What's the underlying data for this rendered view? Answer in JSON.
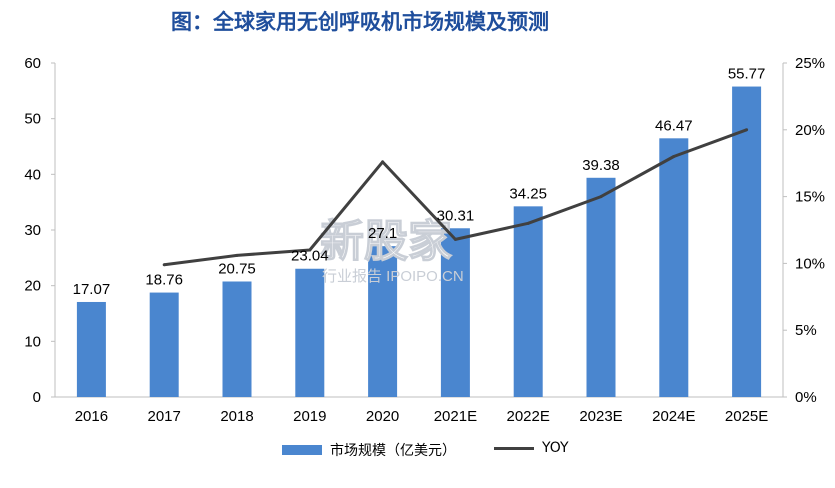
{
  "title": "图：全球家用无创呼吸机市场规模及预测",
  "watermark": {
    "main": "新股家",
    "sub": "行业报告 IPOIPO.CN"
  },
  "legend": {
    "bar_label": "市场规模（亿美元）",
    "line_label": "YOY"
  },
  "colors": {
    "bar": "#4a86cf",
    "line": "#404040",
    "title": "#1f4e9c"
  },
  "chart_data": {
    "type": "bar",
    "title": "图：全球家用无创呼吸机市场规模及预测",
    "categories": [
      "2016",
      "2017",
      "2018",
      "2019",
      "2020",
      "2021E",
      "2022E",
      "2023E",
      "2024E",
      "2025E"
    ],
    "series": [
      {
        "name": "市场规模（亿美元）",
        "type": "bar",
        "axis": "left",
        "values": [
          17.07,
          18.76,
          20.75,
          23.04,
          27.1,
          30.31,
          34.25,
          39.38,
          46.47,
          55.77
        ]
      },
      {
        "name": "YOY",
        "type": "line",
        "axis": "right",
        "values": [
          null,
          9.9,
          10.6,
          11.0,
          17.6,
          11.8,
          13.0,
          15.0,
          18.0,
          20.0
        ]
      }
    ],
    "y_left": {
      "min": 0,
      "max": 60,
      "ticks": [
        0,
        10,
        20,
        30,
        40,
        50,
        60
      ]
    },
    "y_right": {
      "min": 0,
      "max": 25,
      "ticks": [
        "0%",
        "5%",
        "10%",
        "15%",
        "20%",
        "25%"
      ]
    },
    "grid": false,
    "legend_position": "bottom"
  }
}
